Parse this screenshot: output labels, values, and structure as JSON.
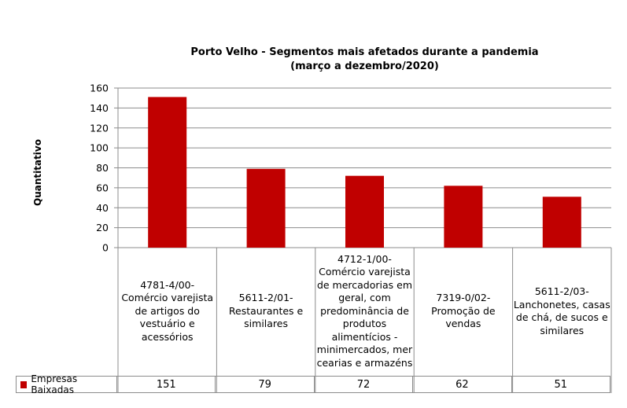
{
  "chart_data": {
    "type": "bar",
    "title": "Porto Velho - Segmentos mais afetados durante a pandemia",
    "subtitle": "(março a dezembro/2020)",
    "ylabel": "Quantitativo",
    "xlabel": "",
    "ylim": [
      0,
      160
    ],
    "yticks": [
      0,
      20,
      40,
      60,
      80,
      100,
      120,
      140,
      160
    ],
    "grid": true,
    "categories": [
      "4781-4/00-Comércio varejista de artigos do vestuário e acessórios",
      "5611-2/01-Restaurantes e similares",
      "4712-1/00-Comércio varejista de mercadorias em geral, com predominância de produtos alimentícios - minimercados, mercearias e armazéns",
      "7319-0/02-Promoção de vendas",
      "5611-2/03-Lanchonetes, casas de chá, de sucos e similares"
    ],
    "category_lines": [
      [
        "4781-4/00-",
        "Comércio varejista",
        "de artigos do",
        "vestuário e",
        "acessórios"
      ],
      [
        "5611-2/01-",
        "Restaurantes e",
        "similares"
      ],
      [
        "4712-1/00-",
        "Comércio varejista",
        "de mercadorias em",
        "geral, com",
        "predominância de",
        "produtos",
        "alimentícios -",
        "minimercados, mer",
        "cearias e armazéns"
      ],
      [
        "7319-0/02-",
        "Promoção de",
        "vendas"
      ],
      [
        "5611-2/03-",
        "Lanchonetes, casas",
        "de chá, de sucos e",
        "similares"
      ]
    ],
    "series": [
      {
        "name": "Empresas Baixadas",
        "values": [
          151,
          79,
          72,
          62,
          51
        ],
        "color": "#c00000"
      }
    ],
    "legend": "bottom-table"
  }
}
